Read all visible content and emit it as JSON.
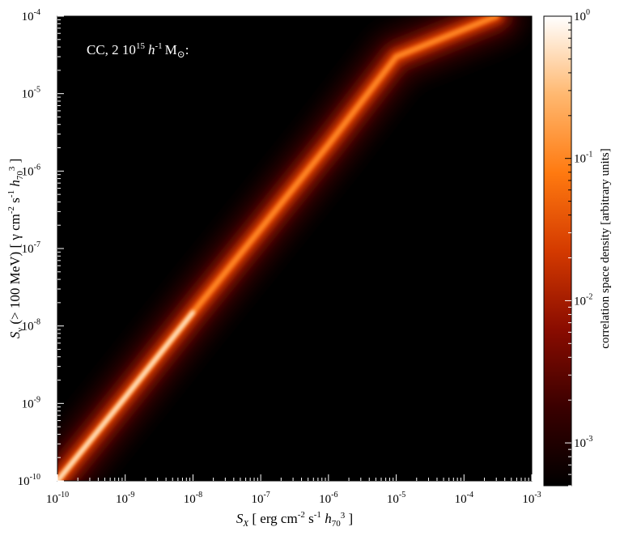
{
  "chart_data": {
    "type": "heatmap",
    "annotation": {
      "prefix": "CC, 2 10",
      "exponent": "15",
      "h": "h",
      "h_exp": "-1",
      "unit": "M",
      "suffix": ":"
    },
    "x_axis": {
      "scale": "log",
      "range": [
        1e-10,
        0.001
      ],
      "tick_exponents": [
        "-10",
        "-9",
        "-8",
        "-7",
        "-6",
        "-5",
        "-4",
        "-3"
      ],
      "label": {
        "sym": "S",
        "sub": "X",
        "open": " [ erg cm",
        "e1": "-2",
        "mid": " s",
        "e2": "-1",
        "h": " h",
        "hsub": "70",
        "hexp": "3",
        "close": " ]"
      }
    },
    "y_axis": {
      "scale": "log",
      "range": [
        1e-10,
        0.0001
      ],
      "tick_exponents": [
        "-10",
        "-9",
        "-8",
        "-7",
        "-6",
        "-5",
        "-4"
      ],
      "label": {
        "sym": "S",
        "sub": "γ",
        "part1": " (> 100 MeV) [ γ cm",
        "e1": "-2",
        "mid": " s",
        "e2": "-1",
        "h": " h",
        "hsub": "70",
        "hexp": "3",
        "close": " ]"
      }
    },
    "colorbar": {
      "scale": "log",
      "range": [
        0.0005,
        1
      ],
      "label": "correlation space density [arbitrary units]",
      "tick_exponents": [
        "0",
        "-1",
        "-2",
        "-3"
      ],
      "colormap": [
        "#000000",
        "#3a0000",
        "#8a0c00",
        "#d43a00",
        "#ff7a10",
        "#ffb870",
        "#ffffff"
      ]
    },
    "ridge": {
      "description_free": true,
      "points": [
        {
          "x": 1e-10,
          "y": 1e-10
        },
        {
          "x": 1e-09,
          "y": 1.2e-09
        },
        {
          "x": 1e-08,
          "y": 1.5e-08
        },
        {
          "x": 1e-07,
          "y": 1.8e-07
        },
        {
          "x": 1e-06,
          "y": 2.2e-06
        },
        {
          "x": 1e-05,
          "y": 3e-05
        },
        {
          "x": 0.0003,
          "y": 0.0001
        }
      ]
    },
    "grid": false,
    "legend": "none"
  }
}
